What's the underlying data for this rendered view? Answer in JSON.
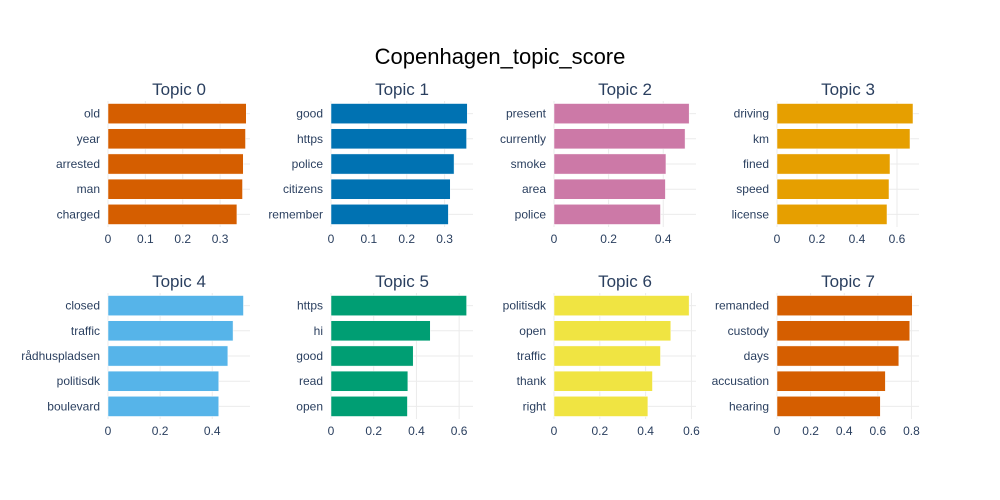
{
  "figure": {
    "title": "Copenhagen_topic_score"
  },
  "chart_data": [
    {
      "type": "bar",
      "orientation": "horizontal",
      "title": "Topic 0",
      "color": "#D55E00",
      "categories": [
        "old",
        "year",
        "arrested",
        "man",
        "charged"
      ],
      "values": [
        0.37,
        0.368,
        0.362,
        0.36,
        0.345
      ],
      "xlim": [
        0,
        0.38
      ],
      "xticks": [
        0,
        0.1,
        0.2,
        0.3
      ],
      "xtick_labels": [
        "0",
        "0.1",
        "0.2",
        "0.3"
      ],
      "grid": true
    },
    {
      "type": "bar",
      "orientation": "horizontal",
      "title": "Topic 1",
      "color": "#0072B2",
      "categories": [
        "good",
        "https",
        "police",
        "citizens",
        "remember"
      ],
      "values": [
        0.36,
        0.358,
        0.325,
        0.315,
        0.31
      ],
      "xlim": [
        0,
        0.375
      ],
      "xticks": [
        0,
        0.1,
        0.2,
        0.3
      ],
      "xtick_labels": [
        "0",
        "0.1",
        "0.2",
        "0.3"
      ],
      "grid": true
    },
    {
      "type": "bar",
      "orientation": "horizontal",
      "title": "Topic 2",
      "color": "#CC79A7",
      "categories": [
        "present",
        "currently",
        "smoke",
        "area",
        "police"
      ],
      "values": [
        0.495,
        0.48,
        0.41,
        0.408,
        0.39
      ],
      "xlim": [
        0,
        0.52
      ],
      "xticks": [
        0,
        0.2,
        0.4
      ],
      "xtick_labels": [
        "0",
        "0.2",
        "0.4"
      ],
      "grid": true
    },
    {
      "type": "bar",
      "orientation": "horizontal",
      "title": "Topic 3",
      "color": "#E69F00",
      "categories": [
        "driving",
        "km",
        "fined",
        "speed",
        "license"
      ],
      "values": [
        0.68,
        0.665,
        0.565,
        0.56,
        0.55
      ],
      "xlim": [
        0,
        0.71
      ],
      "xticks": [
        0,
        0.2,
        0.4,
        0.6
      ],
      "xtick_labels": [
        "0",
        "0.2",
        "0.4",
        "0.6"
      ],
      "grid": true
    },
    {
      "type": "bar",
      "orientation": "horizontal",
      "title": "Topic 4",
      "color": "#56B4E9",
      "categories": [
        "closed",
        "traffic",
        "rådhuspladsen",
        "politisdk",
        "boulevard"
      ],
      "values": [
        0.52,
        0.48,
        0.46,
        0.425,
        0.425
      ],
      "xlim": [
        0,
        0.545
      ],
      "xticks": [
        0,
        0.2,
        0.4
      ],
      "xtick_labels": [
        "0",
        "0.2",
        "0.4"
      ],
      "grid": true
    },
    {
      "type": "bar",
      "orientation": "horizontal",
      "title": "Topic 5",
      "color": "#009E73",
      "categories": [
        "https",
        "hi",
        "good",
        "read",
        "open"
      ],
      "values": [
        0.635,
        0.465,
        0.385,
        0.36,
        0.358
      ],
      "xlim": [
        0,
        0.665
      ],
      "xticks": [
        0,
        0.2,
        0.4,
        0.6
      ],
      "xtick_labels": [
        "0",
        "0.2",
        "0.4",
        "0.6"
      ],
      "grid": true
    },
    {
      "type": "bar",
      "orientation": "horizontal",
      "title": "Topic 6",
      "color": "#F0E442",
      "categories": [
        "politisdk",
        "open",
        "traffic",
        "thank",
        "right"
      ],
      "values": [
        0.59,
        0.51,
        0.465,
        0.43,
        0.41
      ],
      "xlim": [
        0,
        0.62
      ],
      "xticks": [
        0,
        0.2,
        0.4,
        0.6
      ],
      "xtick_labels": [
        "0",
        "0.2",
        "0.4",
        "0.6"
      ],
      "grid": true
    },
    {
      "type": "bar",
      "orientation": "horizontal",
      "title": "Topic 7",
      "color": "#D55E00",
      "categories": [
        "remanded",
        "custody",
        "days",
        "accusation",
        "hearing"
      ],
      "values": [
        0.805,
        0.79,
        0.725,
        0.645,
        0.615
      ],
      "xlim": [
        0,
        0.845
      ],
      "xticks": [
        0,
        0.2,
        0.4,
        0.6,
        0.8
      ],
      "xtick_labels": [
        "0",
        "0.2",
        "0.4",
        "0.6",
        "0.8"
      ],
      "grid": true
    }
  ]
}
